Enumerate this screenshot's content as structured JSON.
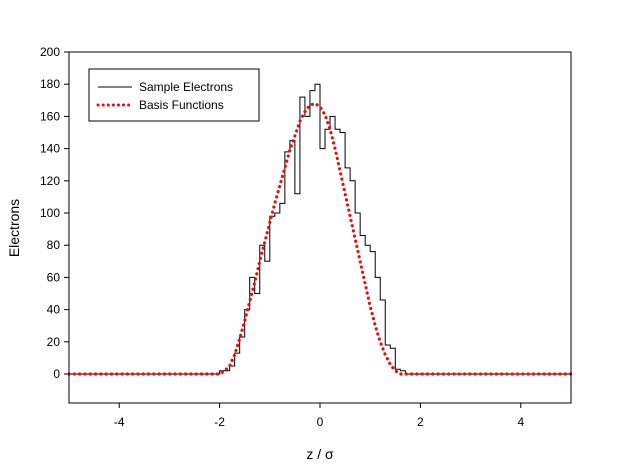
{
  "chart_data": {
    "type": "line",
    "title": "",
    "xlabel": "z / σ",
    "ylabel": "Electrons",
    "xlim": [
      -5,
      5
    ],
    "ylim": [
      -18,
      200
    ],
    "x_ticks": [
      -4,
      -2,
      0,
      2,
      4
    ],
    "y_ticks": [
      0,
      20,
      40,
      60,
      80,
      100,
      120,
      140,
      160,
      180,
      200
    ],
    "grid": false,
    "legend_position": "top-left",
    "series": [
      {
        "name": "Sample Electrons",
        "style": "step",
        "color": "#000000",
        "x": [
          -2.0,
          -1.8,
          -1.7,
          -1.6,
          -1.5,
          -1.4,
          -1.3,
          -1.2,
          -1.1,
          -1.0,
          -0.9,
          -0.8,
          -0.7,
          -0.6,
          -0.5,
          -0.4,
          -0.3,
          -0.2,
          -0.1,
          0.0,
          0.1,
          0.2,
          0.3,
          0.4,
          0.5,
          0.6,
          0.7,
          0.8,
          0.9,
          1.0,
          1.1,
          1.2,
          1.3,
          1.4,
          1.5,
          1.6,
          1.7
        ],
        "y": [
          2,
          5,
          13,
          23,
          40,
          60,
          50,
          80,
          70,
          98,
          100,
          106,
          138,
          145,
          112,
          172,
          160,
          176,
          180,
          140,
          152,
          160,
          152,
          150,
          128,
          120,
          100,
          86,
          80,
          76,
          60,
          46,
          18,
          16,
          3,
          2,
          0
        ]
      },
      {
        "name": "Basis Functions",
        "style": "dotted",
        "color": "#e01010",
        "x": [
          -5,
          -4.8,
          -4.6,
          -4.4,
          -4.2,
          -4.0,
          -3.8,
          -3.6,
          -3.4,
          -3.2,
          -3.0,
          -2.8,
          -2.6,
          -2.4,
          -2.2,
          -2.0,
          -1.9,
          -1.8,
          -1.7,
          -1.6,
          -1.5,
          -1.4,
          -1.3,
          -1.2,
          -1.1,
          -1.0,
          -0.9,
          -0.8,
          -0.7,
          -0.6,
          -0.5,
          -0.4,
          -0.3,
          -0.2,
          -0.1,
          0.0,
          0.1,
          0.2,
          0.3,
          0.4,
          0.5,
          0.6,
          0.7,
          0.8,
          0.9,
          1.0,
          1.1,
          1.2,
          1.3,
          1.4,
          1.5,
          1.6,
          1.7,
          1.8,
          2.0,
          2.2,
          2.4,
          2.6,
          2.8,
          3.0,
          3.2,
          3.4,
          3.6,
          3.8,
          4.0,
          4.2,
          4.4,
          4.6,
          4.8,
          5.0
        ],
        "y": [
          0,
          0,
          0,
          0,
          0,
          0,
          0,
          0,
          0,
          0,
          0,
          0,
          0,
          0,
          0,
          0,
          2,
          5,
          12,
          22,
          33,
          45,
          57,
          70,
          82,
          94,
          106,
          117,
          128,
          139,
          148,
          157,
          163,
          167,
          168,
          166,
          161,
          152,
          140,
          126,
          112,
          98,
          84,
          70,
          56,
          42,
          30,
          20,
          12,
          6,
          2,
          0,
          0,
          0,
          0,
          0,
          0,
          0,
          0,
          0,
          0,
          0,
          0,
          0,
          0,
          0,
          0,
          0,
          0,
          0
        ]
      }
    ]
  }
}
